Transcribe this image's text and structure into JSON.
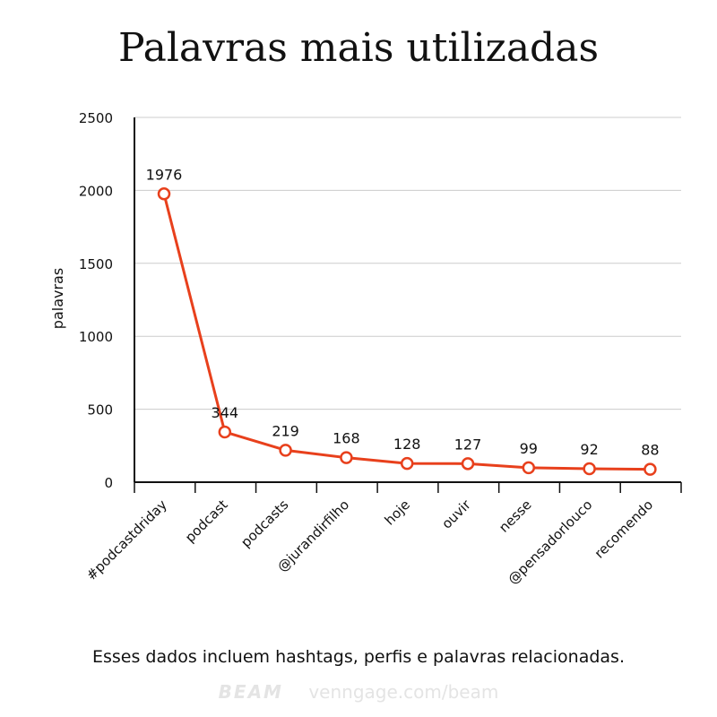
{
  "chart_data": {
    "type": "line",
    "title": "Palavras mais utilizadas",
    "ylabel": "palavras",
    "xlabel": "",
    "categories": [
      "#podcastdriday",
      "podcast",
      "podcasts",
      "@jurandirfilho",
      "hoje",
      "ouvir",
      "nesse",
      "@pensadorlouco",
      "recomendo"
    ],
    "values": [
      1976,
      344,
      219,
      168,
      128,
      127,
      99,
      92,
      88
    ],
    "ylim": [
      0,
      2500
    ],
    "yticks": [
      0,
      500,
      1000,
      1500,
      2000,
      2500
    ],
    "grid": true,
    "legend": "none",
    "line_color": "#e8401c"
  },
  "note": "Esses dados incluem hashtags, perfis e palavras relacionadas.",
  "footer": {
    "brand": "BEAM",
    "url": "venngage.com/beam"
  }
}
